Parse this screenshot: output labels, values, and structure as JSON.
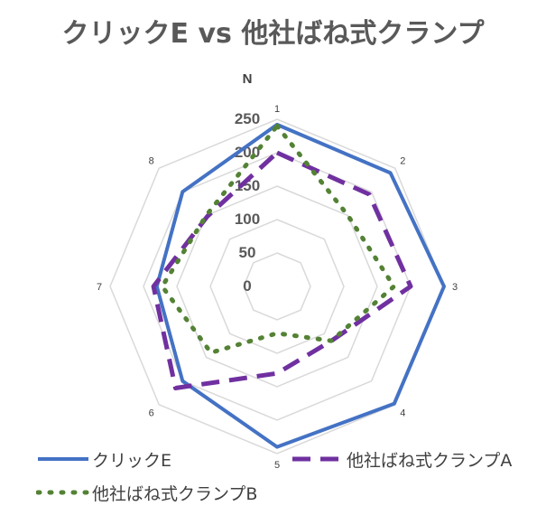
{
  "chart_data": {
    "type": "radar",
    "title": "クリックE vs 他社ばね式クランプ",
    "unit_label": "N",
    "categories": [
      "1",
      "2",
      "3",
      "4",
      "5",
      "6",
      "7",
      "8"
    ],
    "radial_ticks": [
      0,
      50,
      100,
      150,
      200,
      250
    ],
    "rmax": 250,
    "series": [
      {
        "name": "クリックE",
        "color": "#4472C4",
        "dash": "solid",
        "values": [
          242,
          240,
          250,
          248,
          240,
          200,
          180,
          200
        ]
      },
      {
        "name": "他社ばね式クランプA",
        "color": "#7030A0",
        "dash": "dash",
        "values": [
          200,
          195,
          200,
          115,
          130,
          215,
          185,
          148
        ]
      },
      {
        "name": "他社ばね式クランプB",
        "color": "#548235",
        "dash": "dot",
        "values": [
          240,
          150,
          175,
          115,
          70,
          140,
          172,
          150
        ]
      }
    ]
  }
}
